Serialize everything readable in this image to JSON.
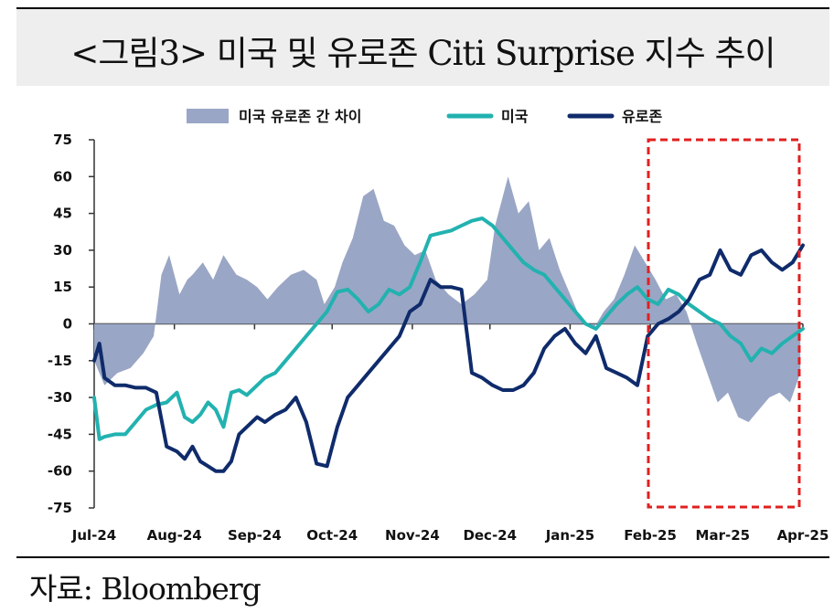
{
  "title": "<그림3> 미국 및 유로존 Citi Surprise 지수 추이",
  "source": "자료: Bloomberg",
  "chart_data": {
    "type": "line",
    "ylim": [
      -75,
      75
    ],
    "yticks": [
      75,
      60,
      45,
      30,
      15,
      0,
      -15,
      -30,
      -45,
      -60,
      -75
    ],
    "x_range": [
      "2024-07-01",
      "2025-04-01"
    ],
    "xtick_labels": [
      "Jul-24",
      "Aug-24",
      "Sep-24",
      "Oct-24",
      "Nov-24",
      "Dec-24",
      "Jan-25",
      "Feb-25",
      "Mar-25",
      "Apr-25"
    ],
    "xtick_dates": [
      "2024-07-01",
      "2024-08-01",
      "2024-09-01",
      "2024-10-01",
      "2024-11-01",
      "2024-12-01",
      "2025-01-01",
      "2025-02-01",
      "2025-03-01",
      "2025-04-01"
    ],
    "legend_position": "top",
    "series": [
      {
        "name": "미국 유로존 간 차이",
        "kind": "area",
        "color": "#9aa6c5",
        "x": [
          "2024-07-01",
          "2024-07-05",
          "2024-07-10",
          "2024-07-15",
          "2024-07-20",
          "2024-07-24",
          "2024-07-27",
          "2024-07-30",
          "2024-08-03",
          "2024-08-06",
          "2024-08-08",
          "2024-08-12",
          "2024-08-16",
          "2024-08-20",
          "2024-08-25",
          "2024-08-29",
          "2024-09-02",
          "2024-09-06",
          "2024-09-10",
          "2024-09-15",
          "2024-09-20",
          "2024-09-25",
          "2024-09-28",
          "2024-10-02",
          "2024-10-05",
          "2024-10-09",
          "2024-10-13",
          "2024-10-17",
          "2024-10-21",
          "2024-10-25",
          "2024-10-29",
          "2024-11-02",
          "2024-11-06",
          "2024-11-10",
          "2024-11-15",
          "2024-11-20",
          "2024-11-25",
          "2024-11-30",
          "2024-12-03",
          "2024-12-08",
          "2024-12-12",
          "2024-12-16",
          "2024-12-20",
          "2024-12-24",
          "2024-12-28",
          "2025-01-01",
          "2025-01-05",
          "2025-01-10",
          "2025-01-14",
          "2025-01-18",
          "2025-01-22",
          "2025-01-26",
          "2025-01-30",
          "2025-02-03",
          "2025-02-07",
          "2025-02-11",
          "2025-02-15",
          "2025-02-19",
          "2025-02-23",
          "2025-02-27",
          "2025-03-03",
          "2025-03-07",
          "2025-03-11",
          "2025-03-15",
          "2025-03-19",
          "2025-03-23",
          "2025-03-27",
          "2025-03-31"
        ],
        "values": [
          -15,
          -25,
          -20,
          -18,
          -12,
          -5,
          20,
          28,
          12,
          18,
          20,
          25,
          18,
          28,
          20,
          18,
          15,
          10,
          15,
          20,
          22,
          18,
          8,
          15,
          25,
          35,
          52,
          55,
          42,
          40,
          32,
          28,
          30,
          18,
          12,
          8,
          12,
          18,
          40,
          60,
          45,
          50,
          30,
          35,
          22,
          12,
          2,
          -2,
          5,
          10,
          20,
          32,
          25,
          18,
          10,
          12,
          5,
          -8,
          -20,
          -32,
          -28,
          -38,
          -40,
          -35,
          -30,
          -28,
          -32,
          -20
        ]
      },
      {
        "name": "미국",
        "kind": "line",
        "color": "#22b2b0",
        "x": [
          "2024-07-01",
          "2024-07-03",
          "2024-07-05",
          "2024-07-09",
          "2024-07-13",
          "2024-07-17",
          "2024-07-21",
          "2024-07-25",
          "2024-07-29",
          "2024-08-02",
          "2024-08-05",
          "2024-08-08",
          "2024-08-11",
          "2024-08-14",
          "2024-08-17",
          "2024-08-20",
          "2024-08-23",
          "2024-08-26",
          "2024-08-29",
          "2024-09-02",
          "2024-09-05",
          "2024-09-09",
          "2024-09-13",
          "2024-09-17",
          "2024-09-21",
          "2024-09-25",
          "2024-09-29",
          "2024-10-03",
          "2024-10-07",
          "2024-10-11",
          "2024-10-15",
          "2024-10-19",
          "2024-10-23",
          "2024-10-27",
          "2024-10-31",
          "2024-11-04",
          "2024-11-08",
          "2024-11-12",
          "2024-11-16",
          "2024-11-20",
          "2024-11-24",
          "2024-11-28",
          "2024-12-02",
          "2024-12-06",
          "2024-12-10",
          "2024-12-14",
          "2024-12-18",
          "2024-12-22",
          "2024-12-26",
          "2024-12-30",
          "2025-01-03",
          "2025-01-07",
          "2025-01-11",
          "2025-01-15",
          "2025-01-19",
          "2025-01-23",
          "2025-01-27",
          "2025-01-31",
          "2025-02-04",
          "2025-02-08",
          "2025-02-12",
          "2025-02-16",
          "2025-02-20",
          "2025-02-24",
          "2025-02-28",
          "2025-03-04",
          "2025-03-08",
          "2025-03-12",
          "2025-03-16",
          "2025-03-20",
          "2025-03-24",
          "2025-03-28",
          "2025-04-01"
        ],
        "values": [
          -30,
          -47,
          -46,
          -45,
          -45,
          -40,
          -35,
          -33,
          -32,
          -28,
          -38,
          -40,
          -37,
          -32,
          -35,
          -42,
          -28,
          -27,
          -29,
          -25,
          -22,
          -20,
          -15,
          -10,
          -5,
          0,
          5,
          13,
          14,
          10,
          5,
          8,
          14,
          12,
          15,
          25,
          36,
          37,
          38,
          40,
          42,
          43,
          40,
          35,
          30,
          25,
          22,
          20,
          15,
          10,
          5,
          0,
          -2,
          3,
          8,
          12,
          15,
          10,
          8,
          14,
          12,
          8,
          5,
          2,
          0,
          -5,
          -8,
          -15,
          -10,
          -12,
          -8,
          -5,
          -2
        ]
      },
      {
        "name": "유로존",
        "kind": "line",
        "color": "#0f2b6b",
        "x": [
          "2024-07-01",
          "2024-07-03",
          "2024-07-05",
          "2024-07-09",
          "2024-07-13",
          "2024-07-17",
          "2024-07-21",
          "2024-07-25",
          "2024-07-29",
          "2024-08-02",
          "2024-08-05",
          "2024-08-08",
          "2024-08-11",
          "2024-08-14",
          "2024-08-17",
          "2024-08-20",
          "2024-08-23",
          "2024-08-26",
          "2024-08-29",
          "2024-09-02",
          "2024-09-05",
          "2024-09-09",
          "2024-09-13",
          "2024-09-17",
          "2024-09-21",
          "2024-09-25",
          "2024-09-29",
          "2024-10-03",
          "2024-10-07",
          "2024-10-11",
          "2024-10-15",
          "2024-10-19",
          "2024-10-23",
          "2024-10-27",
          "2024-10-31",
          "2024-11-04",
          "2024-11-08",
          "2024-11-12",
          "2024-11-16",
          "2024-11-20",
          "2024-11-24",
          "2024-11-28",
          "2024-12-02",
          "2024-12-06",
          "2024-12-10",
          "2024-12-14",
          "2024-12-18",
          "2024-12-22",
          "2024-12-26",
          "2024-12-30",
          "2025-01-03",
          "2025-01-07",
          "2025-01-11",
          "2025-01-15",
          "2025-01-19",
          "2025-01-23",
          "2025-01-27",
          "2025-01-31",
          "2025-02-04",
          "2025-02-08",
          "2025-02-12",
          "2025-02-16",
          "2025-02-20",
          "2025-02-24",
          "2025-02-28",
          "2025-03-04",
          "2025-03-08",
          "2025-03-12",
          "2025-03-16",
          "2025-03-20",
          "2025-03-24",
          "2025-03-28",
          "2025-04-01"
        ],
        "values": [
          -15,
          -8,
          -22,
          -25,
          -25,
          -26,
          -26,
          -28,
          -50,
          -52,
          -55,
          -50,
          -56,
          -58,
          -60,
          -60,
          -56,
          -45,
          -42,
          -38,
          -40,
          -37,
          -35,
          -30,
          -40,
          -57,
          -58,
          -42,
          -30,
          -25,
          -20,
          -15,
          -10,
          -5,
          5,
          8,
          18,
          15,
          15,
          14,
          -20,
          -22,
          -25,
          -27,
          -27,
          -25,
          -20,
          -10,
          -5,
          -2,
          -8,
          -12,
          -5,
          -18,
          -20,
          -22,
          -25,
          -5,
          0,
          2,
          5,
          10,
          18,
          20,
          30,
          22,
          20,
          28,
          30,
          25,
          22,
          25,
          32
        ]
      }
    ]
  }
}
